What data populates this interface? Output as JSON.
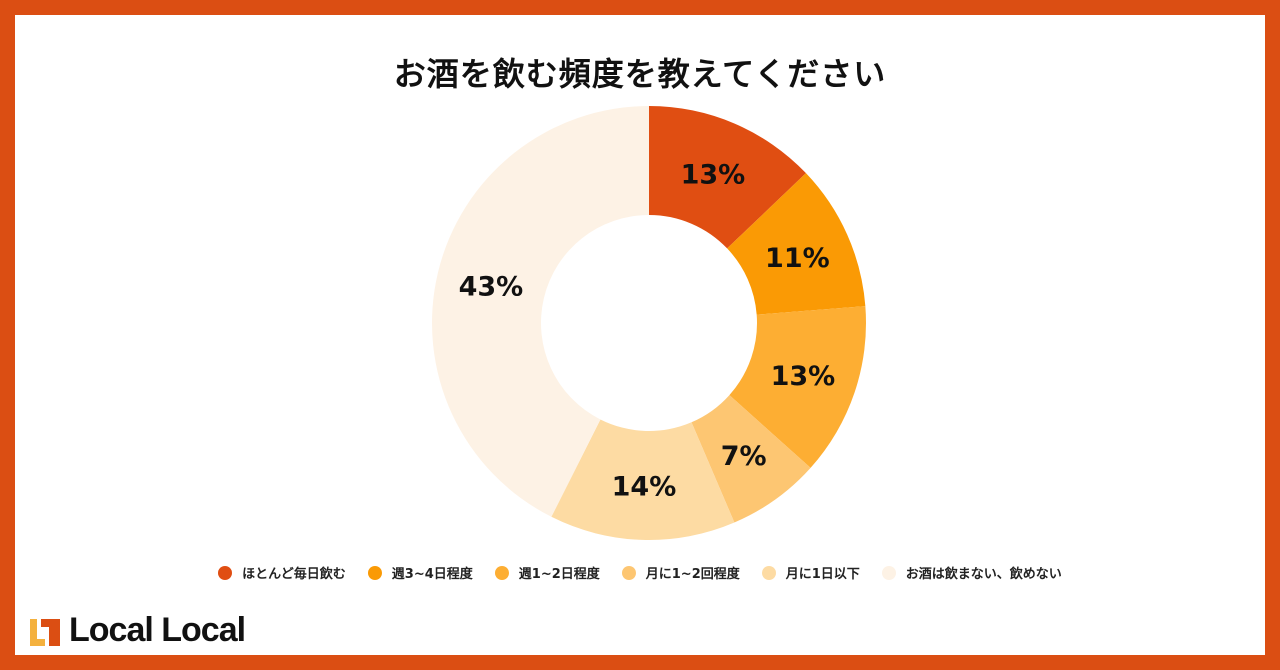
{
  "title": "お酒を飲む頻度を教えてください",
  "logo": {
    "text": "Local Local",
    "icon": "local-local-logo-icon"
  },
  "frame_color": "#DB4E13",
  "chart_data": {
    "type": "pie",
    "subtype": "donut",
    "title": "お酒を飲む頻度を教えてください",
    "categories": [
      "ほとんど毎日飲む",
      "週3~4日程度",
      "週1~2日程度",
      "月に1~2回程度",
      "月に1日以下",
      "お酒は飲まない、飲めない"
    ],
    "values": [
      13,
      11,
      13,
      7,
      14,
      43
    ],
    "unit": "%",
    "colors": [
      "#E04E12",
      "#FA9A05",
      "#FDAE33",
      "#FDC672",
      "#FDDBA3",
      "#FDF2E5"
    ],
    "labels": [
      "13%",
      "11%",
      "13%",
      "7%",
      "14%",
      "43%"
    ],
    "legend_position": "bottom",
    "start_angle": "12 o'clock, clockwise"
  },
  "legend": [
    {
      "label": "ほとんど毎日飲む",
      "color": "#E04E12"
    },
    {
      "label": "週3~4日程度",
      "color": "#FA9A05"
    },
    {
      "label": "週1~2日程度",
      "color": "#FDAE33"
    },
    {
      "label": "月に1~2回程度",
      "color": "#FDC672"
    },
    {
      "label": "月に1日以下",
      "color": "#FDDBA3"
    },
    {
      "label": "お酒は飲まない、飲めない",
      "color": "#FDF2E5"
    }
  ]
}
